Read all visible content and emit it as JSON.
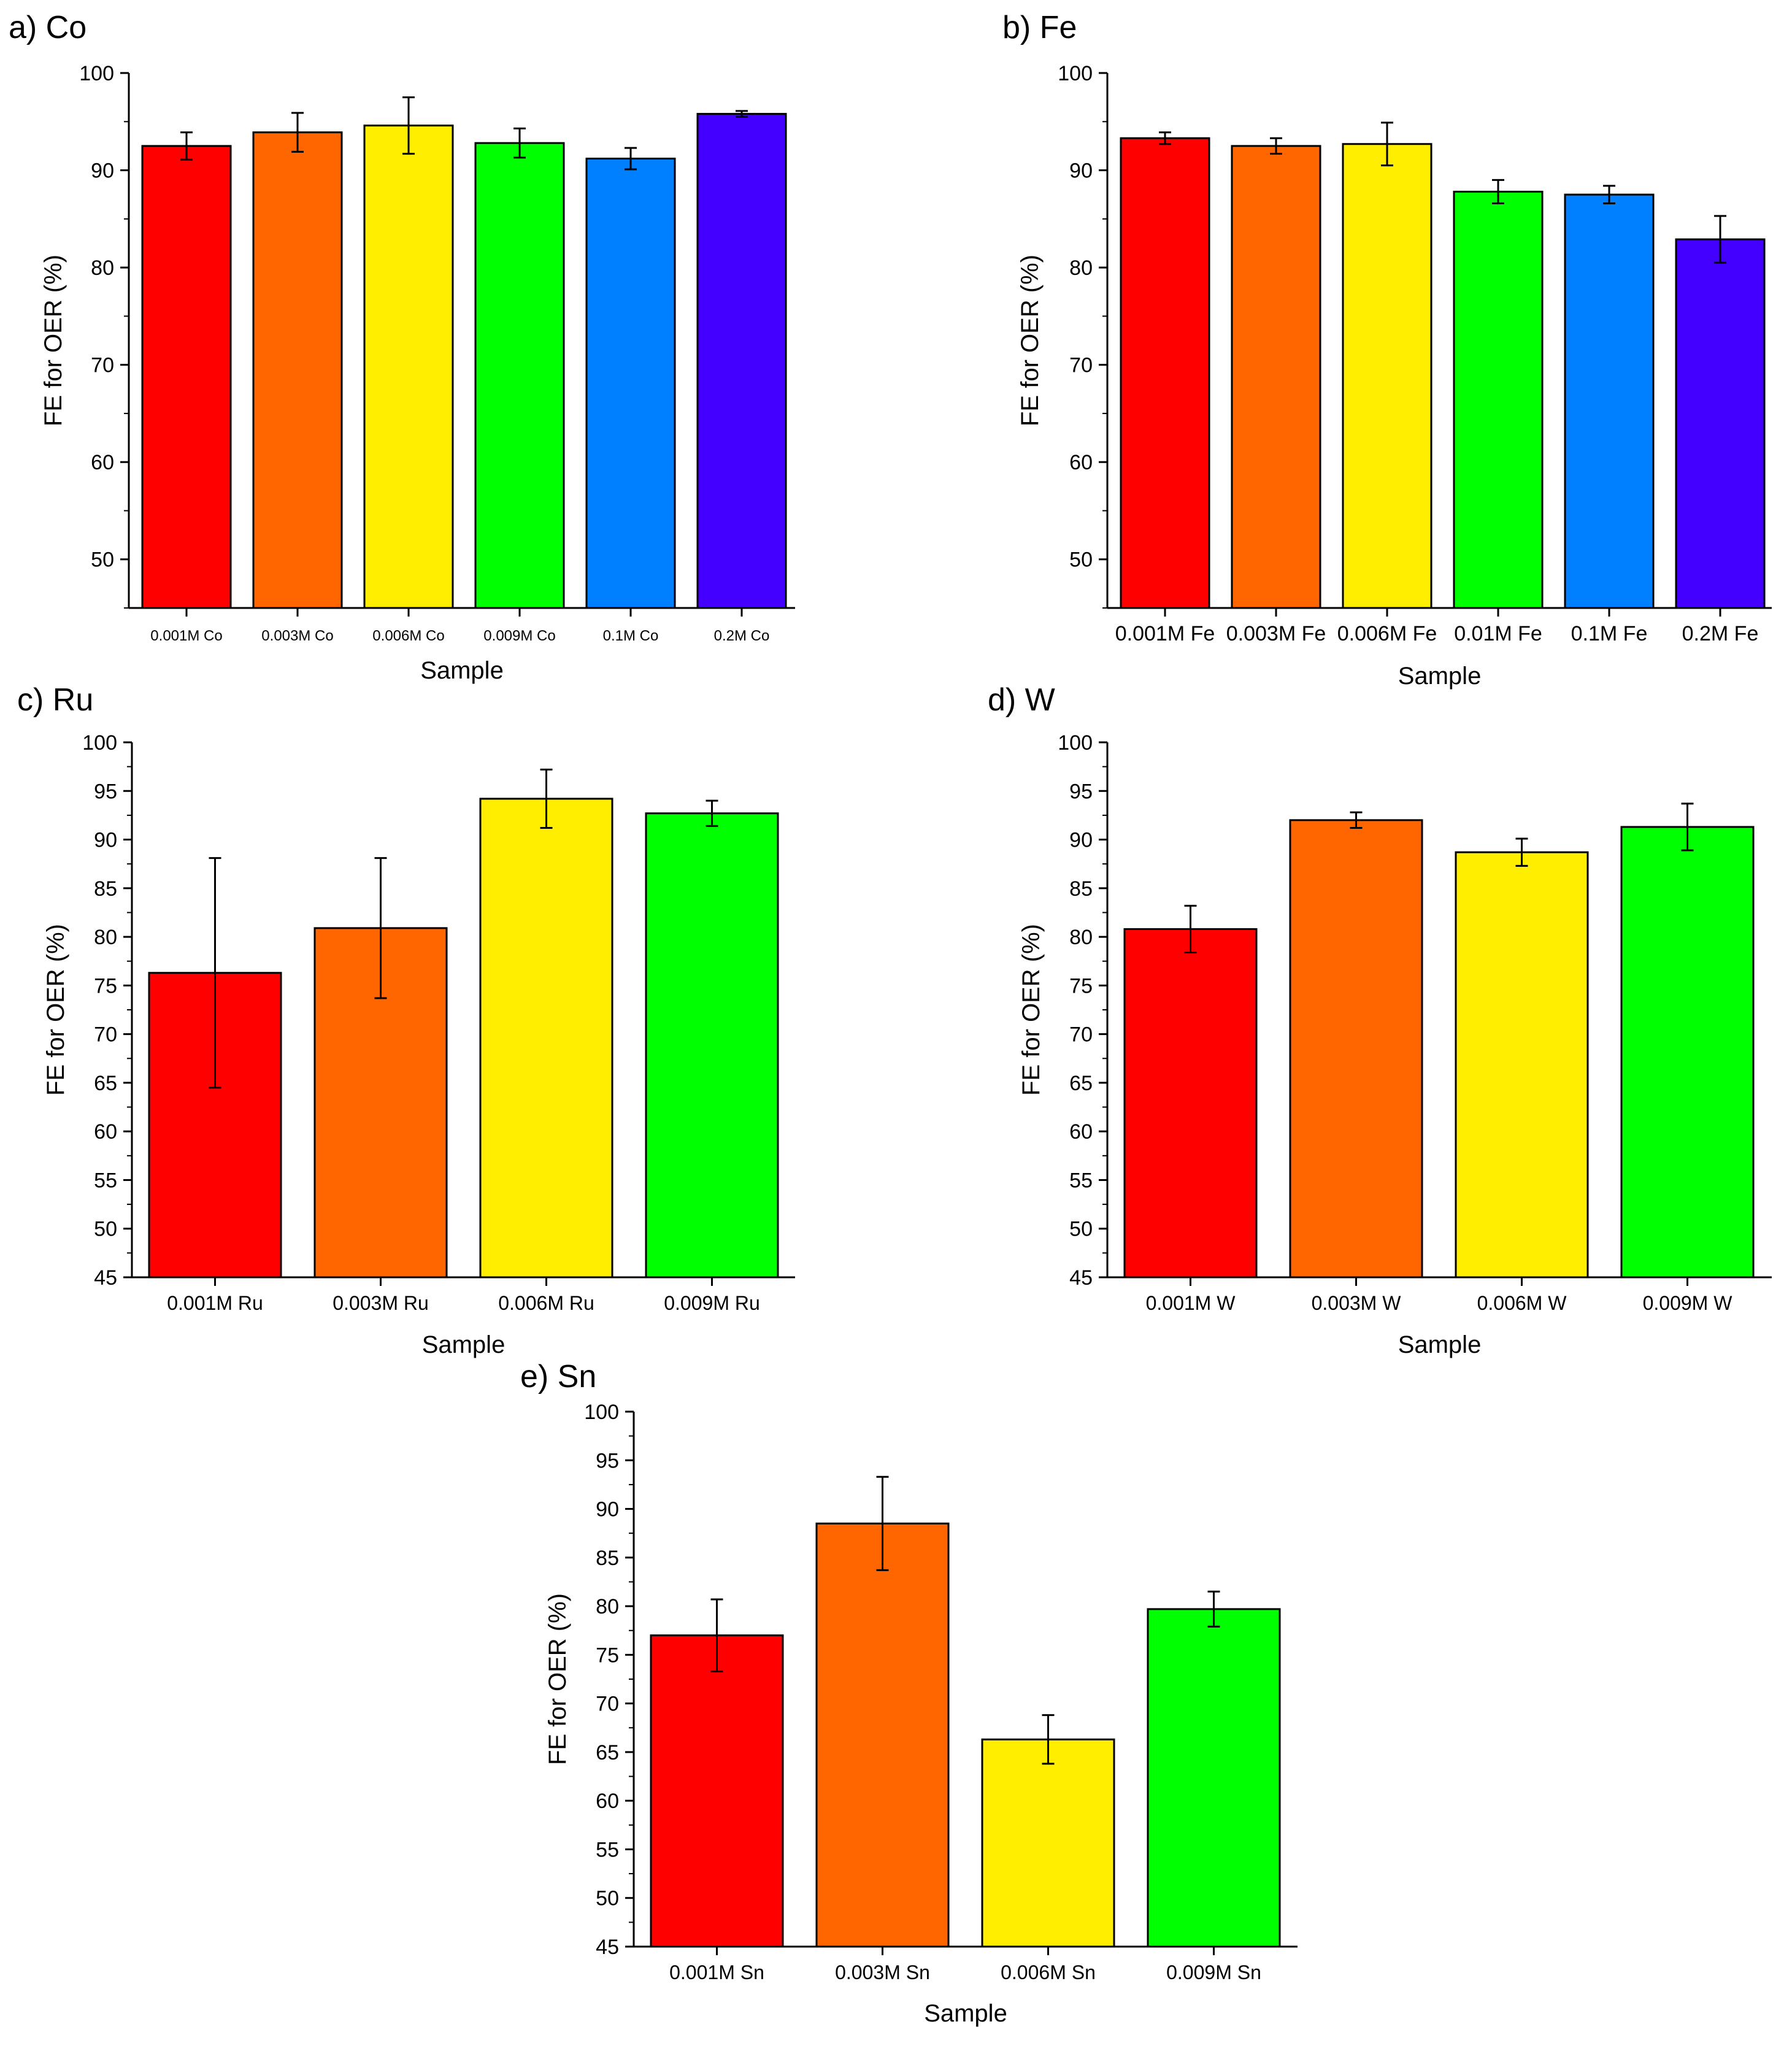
{
  "bar_colors": [
    "#ff0000",
    "#ff6600",
    "#ffee00",
    "#00ff00",
    "#0080ff",
    "#4400ff"
  ],
  "chart_data": [
    {
      "panel": "a",
      "type": "bar",
      "title": "a) Co",
      "xlabel": "Sample",
      "ylabel": "FE for OER (%)",
      "categories": [
        "0.001M Co",
        "0.003M Co",
        "0.006M Co",
        "0.009M Co",
        "0.1M Co",
        "0.2M Co"
      ],
      "values": [
        92.5,
        93.9,
        94.6,
        92.8,
        91.2,
        95.8
      ],
      "errors": [
        1.4,
        2.0,
        2.9,
        1.5,
        1.1,
        0.3
      ],
      "ylim": [
        45,
        100
      ],
      "yticks": [
        50,
        60,
        70,
        80,
        90,
        100
      ],
      "grid": false
    },
    {
      "panel": "b",
      "type": "bar",
      "title": "b) Fe",
      "xlabel": "Sample",
      "ylabel": "FE for OER (%)",
      "categories": [
        "0.001M Fe",
        "0.003M Fe",
        "0.006M Fe",
        "0.01M Fe",
        "0.1M Fe",
        "0.2M Fe"
      ],
      "values": [
        93.3,
        92.5,
        92.7,
        87.8,
        87.5,
        82.9
      ],
      "errors": [
        0.6,
        0.8,
        2.2,
        1.2,
        0.9,
        2.4
      ],
      "ylim": [
        45,
        100
      ],
      "yticks": [
        50,
        60,
        70,
        80,
        90,
        100
      ],
      "grid": false
    },
    {
      "panel": "c",
      "type": "bar",
      "title": "c) Ru",
      "xlabel": "Sample",
      "ylabel": "FE for OER (%)",
      "categories": [
        "0.001M Ru",
        "0.003M Ru",
        "0.006M Ru",
        "0.009M Ru"
      ],
      "values": [
        76.3,
        80.9,
        94.2,
        92.7
      ],
      "errors": [
        11.8,
        7.2,
        3.0,
        1.3
      ],
      "ylim": [
        45,
        100
      ],
      "yticks": [
        45,
        50,
        55,
        60,
        65,
        70,
        75,
        80,
        85,
        90,
        95,
        100
      ],
      "grid": false
    },
    {
      "panel": "d",
      "type": "bar",
      "title": "d) W",
      "xlabel": "Sample",
      "ylabel": "FE for OER (%)",
      "categories": [
        "0.001M W",
        "0.003M W",
        "0.006M W",
        "0.009M W"
      ],
      "values": [
        80.8,
        92.0,
        88.7,
        91.3
      ],
      "errors": [
        2.4,
        0.8,
        1.4,
        2.4
      ],
      "ylim": [
        45,
        100
      ],
      "yticks": [
        45,
        50,
        55,
        60,
        65,
        70,
        75,
        80,
        85,
        90,
        95,
        100
      ],
      "grid": false
    },
    {
      "panel": "e",
      "type": "bar",
      "title": "e) Sn",
      "xlabel": "Sample",
      "ylabel": "FE for OER (%)",
      "categories": [
        "0.001M Sn",
        "0.003M Sn",
        "0.006M Sn",
        "0.009M Sn"
      ],
      "values": [
        77.0,
        88.5,
        66.3,
        79.7
      ],
      "errors": [
        3.7,
        4.8,
        2.5,
        1.8
      ],
      "ylim": [
        45,
        100
      ],
      "yticks": [
        45,
        50,
        55,
        60,
        65,
        70,
        75,
        80,
        85,
        90,
        95,
        100
      ],
      "grid": false
    }
  ]
}
